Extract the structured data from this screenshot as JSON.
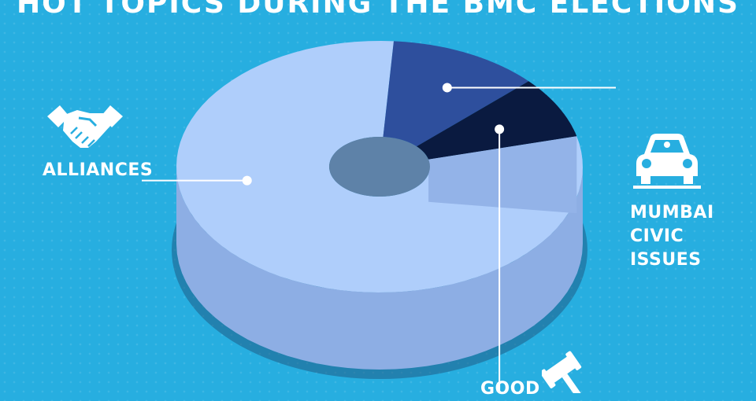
{
  "title": "HOT TOPICS DURING THE BMC ELECTIONS",
  "chart_data": {
    "type": "pie",
    "title": "HOT TOPICS DURING THE BMC ELECTIONS",
    "categories": [
      "ALLIANCES",
      "MUMBAI CIVIC ISSUES",
      "GOOD GOVERNANCE"
    ],
    "values": [
      80,
      12,
      8
    ],
    "labels": [
      {
        "lines": [
          "ALLIANCES"
        ]
      },
      {
        "lines": [
          "MUMBAI",
          "CIVIC",
          "ISSUES"
        ]
      },
      {
        "lines": [
          "GOOD"
        ]
      }
    ],
    "colors": [
      "#afcefb",
      "#2e4f9d",
      "#0a1a40"
    ],
    "side_colors": [
      "#8daee4",
      "#223f7f",
      "#081833"
    ]
  },
  "icons": {
    "alliances": "handshake-icon",
    "civic": "car-icon",
    "governance": "gavel-icon"
  }
}
